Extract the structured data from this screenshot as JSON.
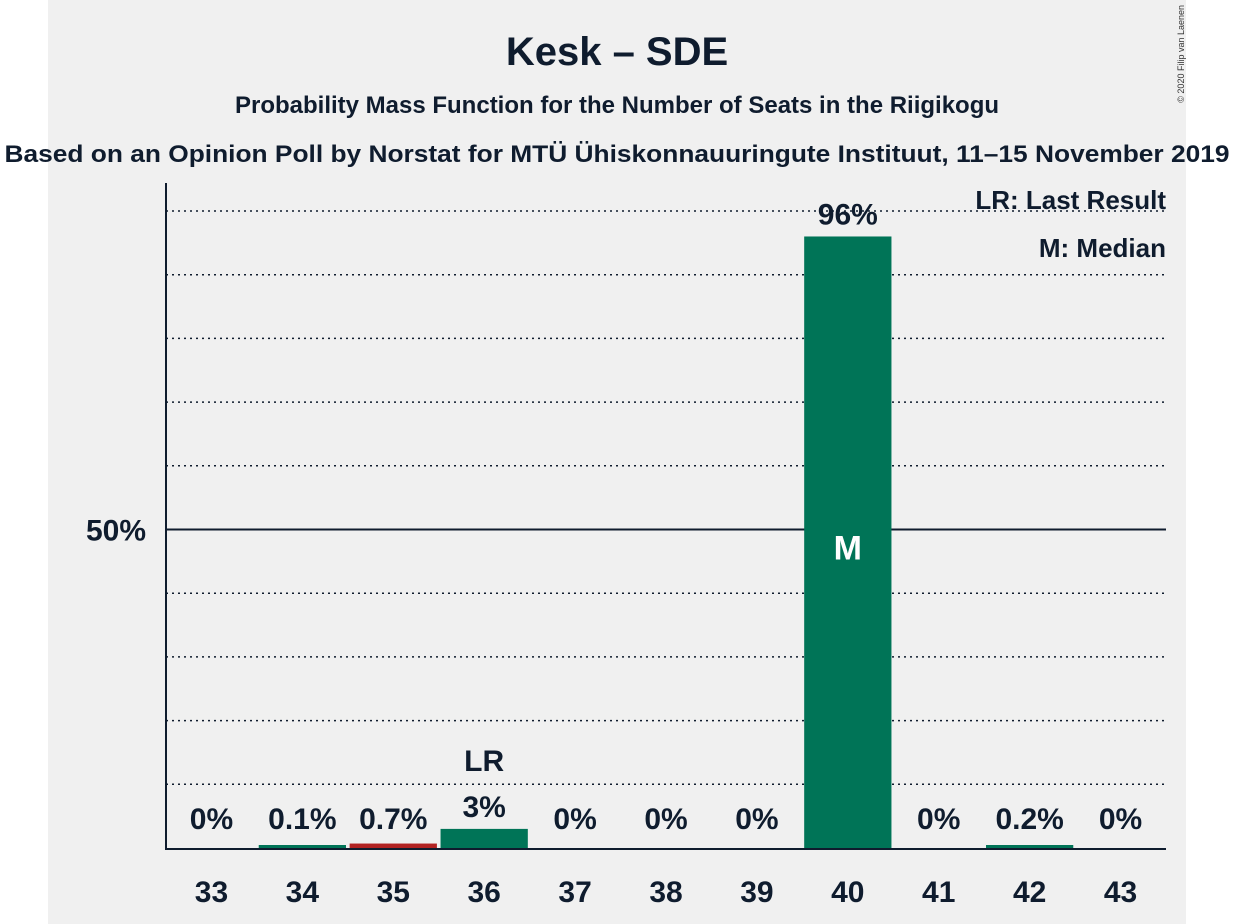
{
  "chart_data": {
    "type": "bar",
    "title": "Kesk – SDE",
    "subtitle": "Probability Mass Function for the Number of Seats in the Riigikogu",
    "subtitle2": "Based on an Opinion Poll by Norstat for MTÜ Ühiskonnauuringute Instituut, 11–15 November 2019",
    "copyright": "© 2020 Filip van Laenen",
    "categories": [
      "33",
      "34",
      "35",
      "36",
      "37",
      "38",
      "39",
      "40",
      "41",
      "42",
      "43"
    ],
    "values": [
      0,
      0.1,
      0.7,
      3,
      0,
      0,
      0,
      96,
      0,
      0.2,
      0
    ],
    "value_labels": [
      "0%",
      "0.1%",
      "0.7%",
      "3%",
      "0%",
      "0%",
      "0%",
      "96%",
      "0%",
      "0.2%",
      "0%"
    ],
    "ylim": [
      0,
      105
    ],
    "y_ticks": [
      {
        "value": 50,
        "label": "50%"
      }
    ],
    "gridline_step": 10,
    "last_result": {
      "category": "36",
      "label": "LR"
    },
    "median": {
      "category": "40",
      "label": "M"
    },
    "legend": [
      "LR: Last Result",
      "M: Median"
    ],
    "legend_position": "top-right",
    "colors": {
      "bar": "#007457",
      "last_result_bar": "#b22222",
      "background": "#f0f0f0",
      "text": "#0f1c2e"
    }
  }
}
